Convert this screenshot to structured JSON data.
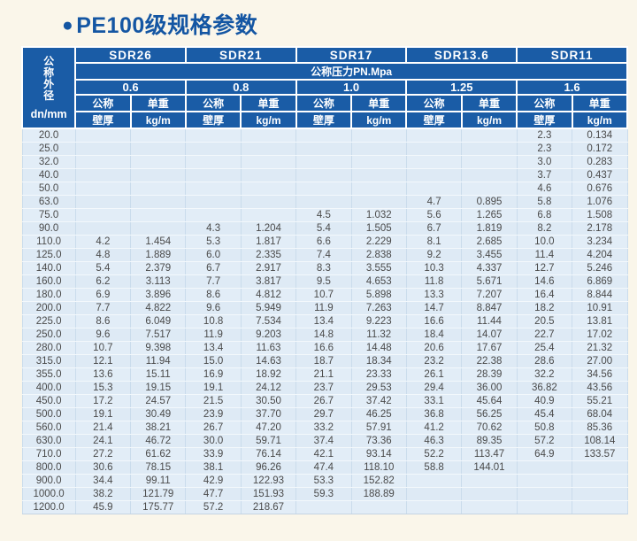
{
  "title": {
    "bullet": "●",
    "text": "PE100级规格参数"
  },
  "table": {
    "corner": {
      "vertical_label": "公称外径",
      "unit_label": "dn/mm"
    },
    "pressure_header": "公称压力PN.Mpa",
    "groups": [
      {
        "sdr": "SDR26",
        "pressure": "0.6"
      },
      {
        "sdr": "SDR21",
        "pressure": "0.8"
      },
      {
        "sdr": "SDR17",
        "pressure": "1.0"
      },
      {
        "sdr": "SDR13.6",
        "pressure": "1.25"
      },
      {
        "sdr": "SDR11",
        "pressure": "1.6"
      }
    ],
    "sub_headers": {
      "wall": [
        "公称",
        "壁厚"
      ],
      "weight": [
        "单重",
        "kg/m"
      ]
    },
    "rows": [
      {
        "dn": "20.0",
        "cells": [
          "",
          "",
          "",
          "",
          "",
          "",
          "",
          "",
          "2.3",
          "0.134"
        ]
      },
      {
        "dn": "25.0",
        "cells": [
          "",
          "",
          "",
          "",
          "",
          "",
          "",
          "",
          "2.3",
          "0.172"
        ]
      },
      {
        "dn": "32.0",
        "cells": [
          "",
          "",
          "",
          "",
          "",
          "",
          "",
          "",
          "3.0",
          "0.283"
        ]
      },
      {
        "dn": "40.0",
        "cells": [
          "",
          "",
          "",
          "",
          "",
          "",
          "",
          "",
          "3.7",
          "0.437"
        ]
      },
      {
        "dn": "50.0",
        "cells": [
          "",
          "",
          "",
          "",
          "",
          "",
          "",
          "",
          "4.6",
          "0.676"
        ]
      },
      {
        "dn": "63.0",
        "cells": [
          "",
          "",
          "",
          "",
          "",
          "",
          "4.7",
          "0.895",
          "5.8",
          "1.076"
        ]
      },
      {
        "dn": "75.0",
        "cells": [
          "",
          "",
          "",
          "",
          "4.5",
          "1.032",
          "5.6",
          "1.265",
          "6.8",
          "1.508"
        ]
      },
      {
        "dn": "90.0",
        "cells": [
          "",
          "",
          "4.3",
          "1.204",
          "5.4",
          "1.505",
          "6.7",
          "1.819",
          "8.2",
          "2.178"
        ]
      },
      {
        "dn": "110.0",
        "cells": [
          "4.2",
          "1.454",
          "5.3",
          "1.817",
          "6.6",
          "2.229",
          "8.1",
          "2.685",
          "10.0",
          "3.234"
        ]
      },
      {
        "dn": "125.0",
        "cells": [
          "4.8",
          "1.889",
          "6.0",
          "2.335",
          "7.4",
          "2.838",
          "9.2",
          "3.455",
          "11.4",
          "4.204"
        ]
      },
      {
        "dn": "140.0",
        "cells": [
          "5.4",
          "2.379",
          "6.7",
          "2.917",
          "8.3",
          "3.555",
          "10.3",
          "4.337",
          "12.7",
          "5.246"
        ]
      },
      {
        "dn": "160.0",
        "cells": [
          "6.2",
          "3.113",
          "7.7",
          "3.817",
          "9.5",
          "4.653",
          "11.8",
          "5.671",
          "14.6",
          "6.869"
        ]
      },
      {
        "dn": "180.0",
        "cells": [
          "6.9",
          "3.896",
          "8.6",
          "4.812",
          "10.7",
          "5.898",
          "13.3",
          "7.207",
          "16.4",
          "8.844"
        ]
      },
      {
        "dn": "200.0",
        "cells": [
          "7.7",
          "4.822",
          "9.6",
          "5.949",
          "11.9",
          "7.263",
          "14.7",
          "8.847",
          "18.2",
          "10.91"
        ]
      },
      {
        "dn": "225.0",
        "cells": [
          "8.6",
          "6.049",
          "10.8",
          "7.534",
          "13.4",
          "9.223",
          "16.6",
          "11.44",
          "20.5",
          "13.81"
        ]
      },
      {
        "dn": "250.0",
        "cells": [
          "9.6",
          "7.517",
          "11.9",
          "9.203",
          "14.8",
          "11.32",
          "18.4",
          "14.07",
          "22.7",
          "17.02"
        ]
      },
      {
        "dn": "280.0",
        "cells": [
          "10.7",
          "9.398",
          "13.4",
          "11.63",
          "16.6",
          "14.48",
          "20.6",
          "17.67",
          "25.4",
          "21.32"
        ]
      },
      {
        "dn": "315.0",
        "cells": [
          "12.1",
          "11.94",
          "15.0",
          "14.63",
          "18.7",
          "18.34",
          "23.2",
          "22.38",
          "28.6",
          "27.00"
        ]
      },
      {
        "dn": "355.0",
        "cells": [
          "13.6",
          "15.11",
          "16.9",
          "18.92",
          "21.1",
          "23.33",
          "26.1",
          "28.39",
          "32.2",
          "34.56"
        ]
      },
      {
        "dn": "400.0",
        "cells": [
          "15.3",
          "19.15",
          "19.1",
          "24.12",
          "23.7",
          "29.53",
          "29.4",
          "36.00",
          "36.82",
          "43.56"
        ]
      },
      {
        "dn": "450.0",
        "cells": [
          "17.2",
          "24.57",
          "21.5",
          "30.50",
          "26.7",
          "37.42",
          "33.1",
          "45.64",
          "40.9",
          "55.21"
        ]
      },
      {
        "dn": "500.0",
        "cells": [
          "19.1",
          "30.49",
          "23.9",
          "37.70",
          "29.7",
          "46.25",
          "36.8",
          "56.25",
          "45.4",
          "68.04"
        ]
      },
      {
        "dn": "560.0",
        "cells": [
          "21.4",
          "38.21",
          "26.7",
          "47.20",
          "33.2",
          "57.91",
          "41.2",
          "70.62",
          "50.8",
          "85.36"
        ]
      },
      {
        "dn": "630.0",
        "cells": [
          "24.1",
          "46.72",
          "30.0",
          "59.71",
          "37.4",
          "73.36",
          "46.3",
          "89.35",
          "57.2",
          "108.14"
        ]
      },
      {
        "dn": "710.0",
        "cells": [
          "27.2",
          "61.62",
          "33.9",
          "76.14",
          "42.1",
          "93.14",
          "52.2",
          "113.47",
          "64.9",
          "133.57"
        ]
      },
      {
        "dn": "800.0",
        "cells": [
          "30.6",
          "78.15",
          "38.1",
          "96.26",
          "47.4",
          "118.10",
          "58.8",
          "144.01",
          "",
          ""
        ]
      },
      {
        "dn": "900.0",
        "cells": [
          "34.4",
          "99.11",
          "42.9",
          "122.93",
          "53.3",
          "152.82",
          "",
          "",
          "",
          ""
        ]
      },
      {
        "dn": "1000.0",
        "cells": [
          "38.2",
          "121.79",
          "47.7",
          "151.93",
          "59.3",
          "188.89",
          "",
          "",
          "",
          ""
        ]
      },
      {
        "dn": "1200.0",
        "cells": [
          "45.9",
          "175.77",
          "57.2",
          "218.67",
          "",
          "",
          "",
          "",
          "",
          ""
        ]
      }
    ]
  },
  "colors": {
    "header_bg": "#1A5CA6",
    "title_text": "#1456A3",
    "page_bg": "#FAF6EA",
    "row_bg": "#E2EDF7",
    "row_alt_bg": "#DEEAF5",
    "cell_text": "#4A4A4A",
    "header_text": "#FFFFFF"
  }
}
